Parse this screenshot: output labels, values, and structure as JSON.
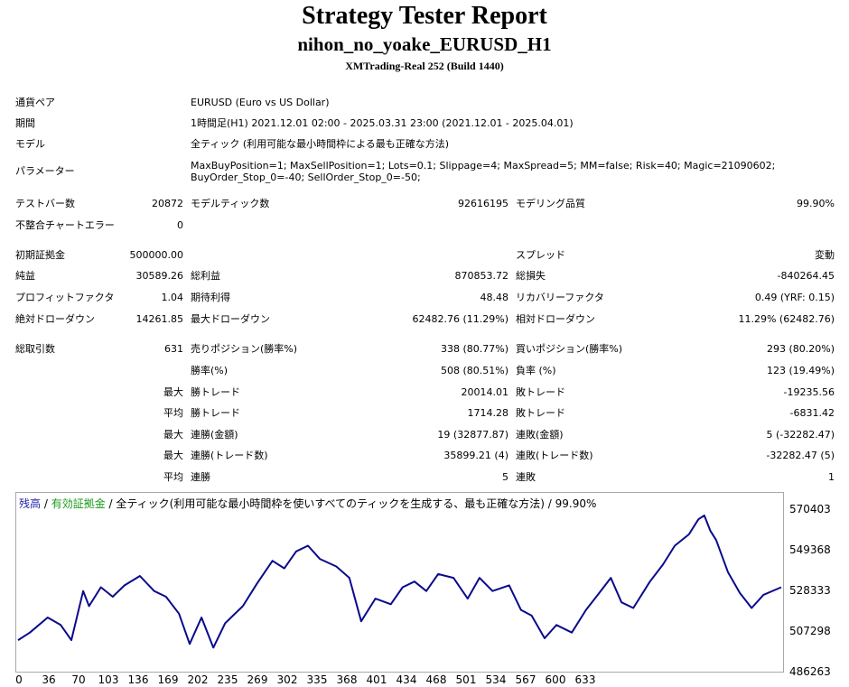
{
  "header": {
    "title": "Strategy Tester Report",
    "subtitle": "nihon_no_yoake_EURUSD_H1",
    "server": "XMTrading-Real 252 (Build 1440)"
  },
  "info": {
    "symbol_label": "通貨ペア",
    "symbol": "EURUSD (Euro vs US Dollar)",
    "period_label": "期間",
    "period": "1時間足(H1) 2021.12.01 02:00 - 2025.03.31 23:00 (2021.12.01 - 2025.04.01)",
    "model_label": "モデル",
    "model": "全ティック (利用可能な最小時間枠による最も正確な方法)",
    "params_label": "パラメーター",
    "params_line1": "MaxBuyPosition=1; MaxSellPosition=1; Lots=0.1; Slippage=4; MaxSpread=5; MM=false; Risk=40; Magic=21090602;",
    "params_line2": "BuyOrder_Stop_0=-40; SellOrder_Stop_0=-50;"
  },
  "stats": {
    "bars_label": "テストバー数",
    "bars": "20872",
    "ticks_label": "モデルティック数",
    "ticks": "92616195",
    "quality_label": "モデリング品質",
    "quality": "99.90%",
    "errors_label": "不整合チャートエラー",
    "errors": "0",
    "deposit_label": "初期証拠金",
    "deposit": "500000.00",
    "spread_label": "スプレッド",
    "spread": "変動",
    "net_label": "純益",
    "net": "30589.26",
    "gross_profit_label": "総利益",
    "gross_profit": "870853.72",
    "gross_loss_label": "総損失",
    "gross_loss": "-840264.45",
    "pf_label": "プロフィットファクタ",
    "pf": "1.04",
    "expected_label": "期待利得",
    "expected": "48.48",
    "recovery_label": "リカバリーファクタ",
    "recovery": "0.49 (YRF: 0.15)",
    "abs_dd_label": "絶対ドローダウン",
    "abs_dd": "14261.85",
    "max_dd_label": "最大ドローダウン",
    "max_dd": "62482.76 (11.29%)",
    "rel_dd_label": "相対ドローダウン",
    "rel_dd": "11.29% (62482.76)",
    "trades_label": "総取引数",
    "trades": "631",
    "short_label": "売りポジション(勝率%)",
    "short": "338 (80.77%)",
    "long_label": "買いポジション(勝率%)",
    "long": "293 (80.20%)",
    "win_pct_label": "勝率(%)",
    "win_pct": "508 (80.51%)",
    "loss_pct_label": "負率 (%)",
    "loss_pct": "123 (19.49%)",
    "max_word": "最大",
    "avg_word": "平均",
    "largest_win_label": "勝トレード",
    "largest_win": "20014.01",
    "largest_loss_label": "敗トレード",
    "largest_loss": "-19235.56",
    "avg_win_label": "勝トレード",
    "avg_win": "1714.28",
    "avg_loss_label": "敗トレード",
    "avg_loss": "-6831.42",
    "max_consec_wins_label": "連勝(金額)",
    "max_consec_wins": "19 (32877.87)",
    "max_consec_losses_label": "連敗(金額)",
    "max_consec_losses": "5 (-32282.47)",
    "max_consec_profit_label": "連勝(トレード数)",
    "max_consec_profit": "35899.21 (4)",
    "max_consec_loss_label": "連敗(トレード数)",
    "max_consec_loss": "-32282.47 (5)",
    "avg_consec_wins_label": "連勝",
    "avg_consec_wins": "5",
    "avg_consec_losses_label": "連敗",
    "avg_consec_losses": "1"
  },
  "legend": {
    "balance": "残高",
    "sep1": " / ",
    "equity": "有効証拠金",
    "rest": " / 全ティック(利用可能な最小時間枠を使いすべてのティックを生成する、最も正確な方法) / 99.90%",
    "balance_color": "#1f1fa6",
    "equity_color": "#1a9a1a"
  },
  "chart_data": {
    "type": "line",
    "series": [
      {
        "name": "残高",
        "color": "#0a0a8c"
      }
    ],
    "ylim": [
      486263,
      570403
    ],
    "y_ticks": [
      "570403",
      "549368",
      "528333",
      "507298",
      "486263"
    ],
    "x_ticks": [
      "0",
      "36",
      "70",
      "103",
      "136",
      "169",
      "202",
      "235",
      "269",
      "302",
      "335",
      "368",
      "401",
      "434",
      "468",
      "501",
      "534",
      "567",
      "600",
      "633"
    ],
    "x": [
      0,
      10,
      25,
      36,
      45,
      55,
      60,
      70,
      80,
      90,
      103,
      115,
      125,
      136,
      145,
      155,
      165,
      175,
      190,
      202,
      215,
      225,
      235,
      245,
      255,
      269,
      280,
      290,
      302,
      315,
      325,
      335,
      345,
      355,
      368,
      380,
      390,
      401,
      415,
      425,
      434,
      445,
      455,
      468,
      480,
      490,
      501,
      510,
      520,
      534,
      545,
      555,
      567,
      575,
      580,
      585,
      590,
      600,
      610,
      620,
      630,
      645
    ],
    "y": [
      502000,
      506000,
      514000,
      510000,
      502000,
      528000,
      520000,
      530000,
      525000,
      531000,
      536000,
      528000,
      525000,
      516000,
      500000,
      514000,
      498000,
      511000,
      520000,
      532000,
      544000,
      540000,
      549000,
      552000,
      545000,
      541000,
      535000,
      512000,
      524000,
      521000,
      530000,
      533000,
      528000,
      537000,
      535000,
      524000,
      535000,
      528000,
      531000,
      518000,
      515000,
      503000,
      510000,
      506000,
      518000,
      526000,
      535000,
      522000,
      519000,
      533000,
      542000,
      552000,
      558000,
      566000,
      568000,
      560000,
      555000,
      538000,
      527000,
      519000,
      526000,
      530000
    ]
  }
}
